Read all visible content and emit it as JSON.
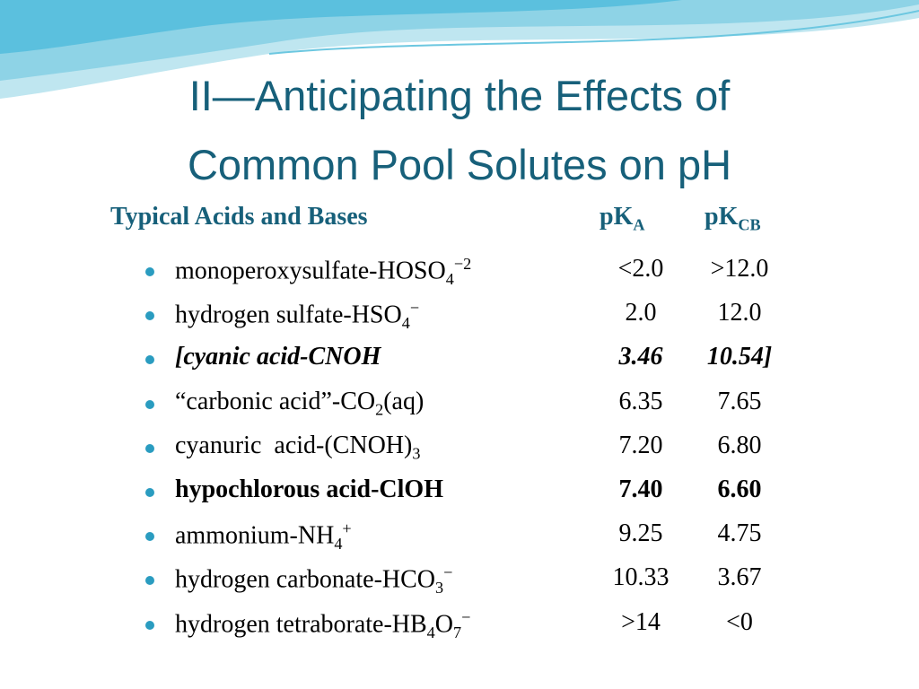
{
  "header": {
    "title": [
      "II—Anticipating the Effects of",
      "Common Pool Solutes on pH"
    ]
  },
  "table": {
    "columns": [
      [
        {
          "text": "Typical Acids and Bases"
        }
      ],
      [
        {
          "text": "pK"
        },
        {
          "text": "A",
          "pos": "sub"
        }
      ],
      [
        {
          "text": "pK"
        },
        {
          "text": "CB",
          "pos": "sub"
        }
      ]
    ],
    "rows": [
      {
        "label": [
          {
            "text": "monoperoxysulfate-HOSO"
          },
          {
            "text": "4",
            "pos": "sub"
          },
          {
            "text": "−2",
            "pos": "sup"
          }
        ],
        "pka": "<2.0",
        "pkcb": ">12.0"
      },
      {
        "label": [
          {
            "text": "hydrogen sulfate-HSO"
          },
          {
            "text": "4",
            "pos": "sub"
          },
          {
            "text": "−",
            "pos": "sup"
          }
        ],
        "pka": "2.0",
        "pkcb": "12.0"
      },
      {
        "label": [
          {
            "text": "[cyanic acid-CNOH"
          }
        ],
        "pka": "3.46",
        "pkcb": "10.54]",
        "style": "bold-italic"
      },
      {
        "label": [
          {
            "text": "“carbonic acid”-CO"
          },
          {
            "text": "2",
            "pos": "sub"
          },
          {
            "text": "(aq)"
          }
        ],
        "pka": "6.35",
        "pkcb": "7.65"
      },
      {
        "label": [
          {
            "text": "cyanuric  acid-(CNOH)"
          },
          {
            "text": "3",
            "pos": "sub"
          }
        ],
        "pka": "7.20",
        "pkcb": "6.80"
      },
      {
        "label": [
          {
            "text": "hypochlorous acid-ClOH"
          }
        ],
        "pka": "7.40",
        "pkcb": "6.60",
        "style": "bold"
      },
      {
        "label": [
          {
            "text": "ammonium-NH"
          },
          {
            "text": "4",
            "pos": "sub"
          },
          {
            "text": "+",
            "pos": "sup"
          }
        ],
        "pka": "9.25",
        "pkcb": "4.75"
      },
      {
        "label": [
          {
            "text": "hydrogen carbonate-HCO"
          },
          {
            "text": "3",
            "pos": "sub"
          },
          {
            "text": "−",
            "pos": "sup"
          }
        ],
        "pka": "10.33",
        "pkcb": "3.67"
      },
      {
        "label": [
          {
            "text": "hydrogen tetraborate-HB"
          },
          {
            "text": "4",
            "pos": "sub"
          },
          {
            "text": "O"
          },
          {
            "text": "7",
            "pos": "sub"
          },
          {
            "text": "−",
            "pos": "sup"
          }
        ],
        "pka": ">14",
        "pkcb": "<0"
      }
    ]
  }
}
